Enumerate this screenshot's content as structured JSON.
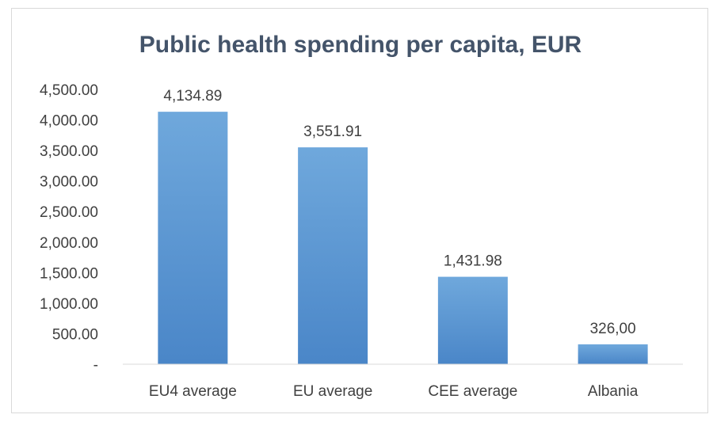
{
  "chart_data": {
    "type": "bar",
    "title": "Public health spending per capita, EUR",
    "xlabel": "",
    "ylabel": "",
    "categories": [
      "EU4 average",
      "EU average",
      "CEE average",
      "Albania"
    ],
    "values": [
      4134.89,
      3551.91,
      1431.98,
      326.0
    ],
    "data_labels": [
      "4,134.89",
      "3,551.91",
      "1,431.98",
      "326,00"
    ],
    "ylim": [
      0,
      4500
    ],
    "yticks": [
      0,
      500,
      1000,
      1500,
      2000,
      2500,
      3000,
      3500,
      4000,
      4500
    ],
    "ytick_labels": [
      "-",
      "500.00",
      "1,000.00",
      "1,500.00",
      "2,000.00",
      "2,500.00",
      "3,000.00",
      "3,500.00",
      "4,000.00",
      "4,500.00"
    ],
    "grid": false,
    "legend": "none",
    "colors": {
      "bar_top": "#6fa8dc",
      "bar_bottom": "#4a86c8",
      "title": "#44546a",
      "axis": "#d9d9d9",
      "text": "#404040"
    }
  }
}
